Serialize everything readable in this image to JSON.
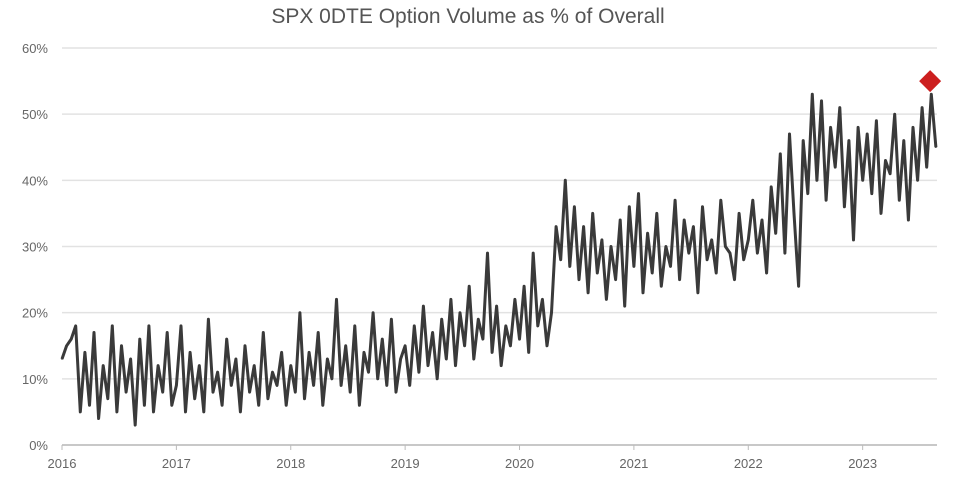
{
  "chart_data": {
    "type": "line",
    "title": "SPX 0DTE Option Volume as % of Overall",
    "xlabel": "",
    "ylabel": "",
    "xlim": [
      2016,
      2023.65
    ],
    "ylim": [
      0,
      60
    ],
    "grid": "horizontal",
    "legend": "none",
    "x_ticks": [
      "2016",
      "2017",
      "2018",
      "2019",
      "2020",
      "2021",
      "2022",
      "2023"
    ],
    "y_ticks": [
      "0%",
      "10%",
      "20%",
      "30%",
      "40%",
      "50%",
      "60%"
    ],
    "colors": {
      "line": "#3a3a3a",
      "grid": "#e2e2e2",
      "marker": "#cc1f1f"
    },
    "series_by_year": [
      {
        "year": 2016,
        "values": [
          13,
          15,
          16,
          18,
          5,
          14,
          6,
          17,
          4,
          12,
          7,
          18,
          5,
          15,
          8,
          13,
          3,
          16,
          6,
          18,
          5,
          12,
          8,
          17,
          6
        ]
      },
      {
        "year": 2017,
        "values": [
          9,
          18,
          5,
          14,
          7,
          12,
          5,
          19,
          8,
          11,
          6,
          16,
          9,
          13,
          5,
          15,
          8,
          12,
          6,
          17,
          7,
          11,
          9,
          14,
          6
        ]
      },
      {
        "year": 2018,
        "values": [
          12,
          8,
          20,
          7,
          14,
          9,
          17,
          6,
          13,
          10,
          22,
          9,
          15,
          8,
          18,
          6,
          14,
          11,
          20,
          10,
          16,
          9,
          19,
          8,
          13
        ]
      },
      {
        "year": 2019,
        "values": [
          15,
          9,
          18,
          11,
          21,
          12,
          17,
          10,
          19,
          13,
          22,
          12,
          20,
          15,
          24,
          13,
          19,
          16,
          29,
          14,
          21,
          12,
          18,
          15,
          22
        ]
      },
      {
        "year": 2020,
        "values": [
          16,
          24,
          14,
          29,
          18,
          22,
          15,
          20,
          33,
          28,
          40,
          27,
          36,
          25,
          33,
          23,
          35,
          26,
          31,
          22,
          30,
          25,
          34,
          21,
          36
        ]
      },
      {
        "year": 2021,
        "values": [
          27,
          38,
          23,
          32,
          26,
          35,
          24,
          30,
          27,
          37,
          25,
          34,
          29,
          33,
          23,
          36,
          28,
          31,
          26,
          37,
          30,
          29,
          25,
          35,
          28
        ]
      },
      {
        "year": 2022,
        "values": [
          31,
          37,
          29,
          34,
          26,
          39,
          32,
          44,
          29,
          47,
          35,
          24,
          46,
          38,
          53,
          40,
          52,
          37,
          48,
          42,
          51,
          36,
          46,
          31,
          48
        ]
      },
      {
        "year": 2023,
        "values": [
          40,
          47,
          38,
          49,
          35,
          43,
          41,
          50,
          37,
          46,
          34,
          48,
          40,
          51,
          42,
          53,
          45
        ]
      }
    ],
    "highlight_point": {
      "x": 2023.59,
      "y": 55,
      "marker": "diamond"
    }
  }
}
